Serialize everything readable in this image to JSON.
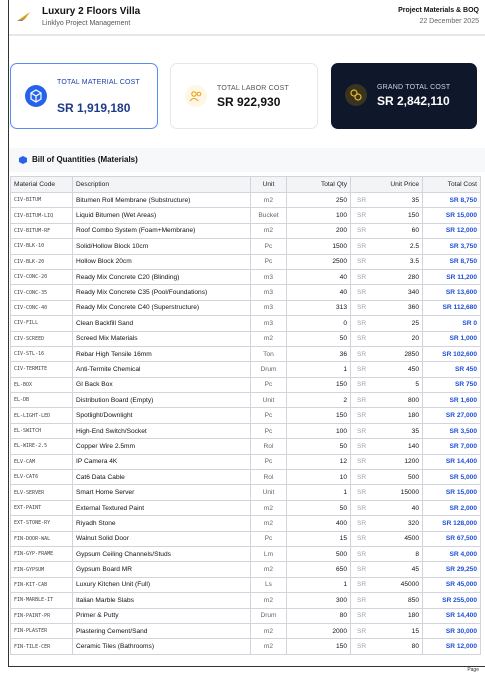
{
  "header": {
    "title": "Luxury 2 Floors Villa",
    "subtitle": "Linklyo Project Management",
    "report_title": "Project Materials & BOQ",
    "date": "22 December 2025"
  },
  "cards": [
    {
      "label": "TOTAL MATERIAL COST",
      "value": "SR 1,919,180"
    },
    {
      "label": "TOTAL LABOR COST",
      "value": "SR 922,930"
    },
    {
      "label": "GRAND TOTAL COST",
      "value": "SR 2,842,110"
    }
  ],
  "section_title": "Bill of Quantities (Materials)",
  "table": {
    "columns": [
      "Material Code",
      "Description",
      "Unit",
      "Total Qty",
      "Unit Price",
      "Total Cost"
    ],
    "rows": [
      [
        "CIV-BITUM",
        "Bitumen Roll Membrane (Substructure)",
        "m2",
        250,
        "SR",
        35,
        "SR 8,750"
      ],
      [
        "CIV-BITUM-LIQ",
        "Liquid Bitumen (Wet Areas)",
        "Bucket",
        100,
        "SR",
        150,
        "SR 15,000"
      ],
      [
        "CIV-BITUM-RF",
        "Roof Combo System (Foam+Membrane)",
        "m2",
        200,
        "SR",
        60,
        "SR 12,000"
      ],
      [
        "CIV-BLK-10",
        "Solid/Hollow Block 10cm",
        "Pc",
        1500,
        "SR",
        2.5,
        "SR 3,750"
      ],
      [
        "CIV-BLK-20",
        "Hollow Block 20cm",
        "Pc",
        2500,
        "SR",
        3.5,
        "SR 8,750"
      ],
      [
        "CIV-CONC-20",
        "Ready Mix Concrete C20 (Blinding)",
        "m3",
        40,
        "SR",
        280,
        "SR 11,200"
      ],
      [
        "CIV-CONC-35",
        "Ready Mix Concrete C35 (Pool/Foundations)",
        "m3",
        40,
        "SR",
        340,
        "SR 13,600"
      ],
      [
        "CIV-CONC-40",
        "Ready Mix Concrete C40 (Superstructure)",
        "m3",
        313,
        "SR",
        360,
        "SR 112,680"
      ],
      [
        "CIV-FILL",
        "Clean Backfill Sand",
        "m3",
        0,
        "SR",
        25,
        "SR 0"
      ],
      [
        "CIV-SCREED",
        "Screed Mix Materials",
        "m2",
        50,
        "SR",
        20,
        "SR 1,000"
      ],
      [
        "CIV-STL-16",
        "Rebar High Tensile 16mm",
        "Ton",
        36,
        "SR",
        2850,
        "SR 102,600"
      ],
      [
        "CIV-TERMITE",
        "Anti-Termite Chemical",
        "Drum",
        1,
        "SR",
        450,
        "SR 450"
      ],
      [
        "EL-BOX",
        "GI Back Box",
        "Pc",
        150,
        "SR",
        5,
        "SR 750"
      ],
      [
        "EL-DB",
        "Distribution Board (Empty)",
        "Unit",
        2,
        "SR",
        800,
        "SR 1,600"
      ],
      [
        "EL-LIGHT-LED",
        "Spotlight/Downlight",
        "Pc",
        150,
        "SR",
        180,
        "SR 27,000"
      ],
      [
        "EL-SWITCH",
        "High-End Switch/Socket",
        "Pc",
        100,
        "SR",
        35,
        "SR 3,500"
      ],
      [
        "EL-WIRE-2.5",
        "Copper Wire 2.5mm",
        "Rol",
        50,
        "SR",
        140,
        "SR 7,000"
      ],
      [
        "ELV-CAM",
        "IP Camera 4K",
        "Pc",
        12,
        "SR",
        1200,
        "SR 14,400"
      ],
      [
        "ELV-CAT6",
        "Cat6 Data Cable",
        "Rol",
        10,
        "SR",
        500,
        "SR 5,000"
      ],
      [
        "ELV-SERVER",
        "Smart Home Server",
        "Unit",
        1,
        "SR",
        15000,
        "SR 15,000"
      ],
      [
        "EXT-PAINT",
        "External Textured Paint",
        "m2",
        50,
        "SR",
        40,
        "SR 2,000"
      ],
      [
        "EXT-STONE-RY",
        "Riyadh Stone",
        "m2",
        400,
        "SR",
        320,
        "SR 128,000"
      ],
      [
        "FIN-DOOR-WAL",
        "Walnut Solid Door",
        "Pc",
        15,
        "SR",
        4500,
        "SR 67,500"
      ],
      [
        "FIN-GYP-FRAME",
        "Gypsum Ceiling Channels/Studs",
        "Lm",
        500,
        "SR",
        8,
        "SR 4,000"
      ],
      [
        "FIN-GYPSUM",
        "Gypsum Board MR",
        "m2",
        650,
        "SR",
        45,
        "SR 29,250"
      ],
      [
        "FIN-KIT-CAB",
        "Luxury Kitchen Unit (Full)",
        "Ls",
        1,
        "SR",
        45000,
        "SR 45,000"
      ],
      [
        "FIN-MARBLE-IT",
        "Italian Marble Slabs",
        "m2",
        300,
        "SR",
        850,
        "SR 255,000"
      ],
      [
        "FIN-PAINT-PR",
        "Primer & Putty",
        "Drum",
        80,
        "SR",
        180,
        "SR 14,400"
      ],
      [
        "FIN-PLASTER",
        "Plastering Cement/Sand",
        "m2",
        2000,
        "SR",
        15,
        "SR 30,000"
      ],
      [
        "FIN-TILE-CER",
        "Ceramic Tiles (Bathrooms)",
        "m2",
        150,
        "SR",
        80,
        "SR 12,000"
      ]
    ]
  },
  "footer": "Page"
}
